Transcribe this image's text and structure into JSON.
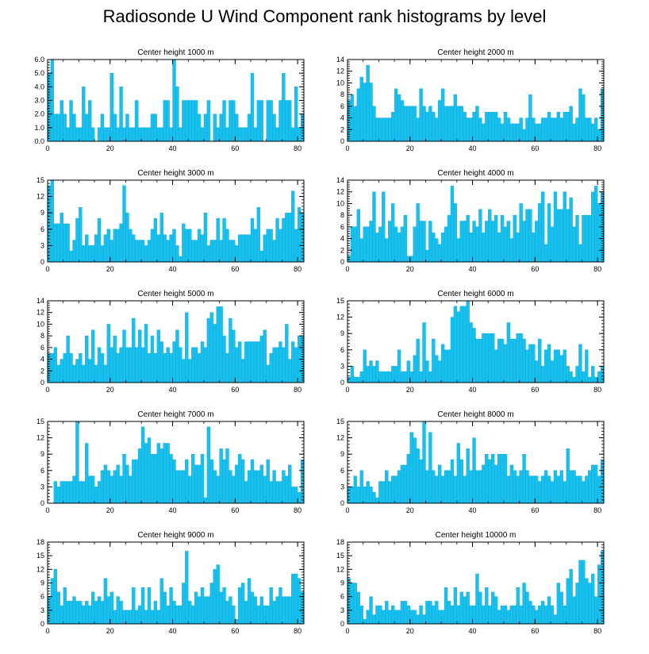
{
  "figure": {
    "title": "Radiosonde U Wind Component rank histograms by level"
  },
  "colors": {
    "bar": "#18c0ee",
    "bar_edge": "#0aa6d8",
    "axis": "#000000",
    "background": "#ffffff"
  },
  "chart_data": [
    {
      "type": "bar",
      "title": "Center height 1000 m",
      "xlim": [
        0,
        82
      ],
      "ylim": [
        0,
        6
      ],
      "xticks": [
        0,
        20,
        40,
        60,
        80
      ],
      "yticks": [
        0.0,
        1.0,
        2.0,
        3.0,
        4.0,
        5.0,
        6.0
      ],
      "ytick_labels": [
        "0.0",
        "1.0",
        "2.0",
        "3.0",
        "4.0",
        "5.0",
        "6.0"
      ],
      "values": [
        5,
        6,
        2,
        2,
        3,
        2,
        1,
        3,
        2,
        1,
        1,
        4,
        2,
        3,
        1,
        0,
        1,
        2,
        1,
        1,
        5,
        2,
        1,
        4,
        1,
        2,
        1,
        1,
        3,
        1,
        1,
        1,
        1,
        2,
        2,
        1,
        1,
        3,
        3,
        1,
        6,
        4,
        1,
        3,
        3,
        3,
        3,
        3,
        2,
        1,
        2,
        3,
        0,
        2,
        1,
        2,
        3,
        1,
        3,
        3,
        2,
        1,
        1,
        1,
        2,
        5,
        1,
        3,
        3,
        0,
        3,
        3,
        2,
        1,
        3,
        5,
        3,
        3,
        1,
        4,
        1,
        2
      ]
    },
    {
      "type": "bar",
      "title": "Center height 2000 m",
      "xlim": [
        0,
        82
      ],
      "ylim": [
        0,
        14
      ],
      "xticks": [
        0,
        20,
        40,
        60,
        80
      ],
      "yticks": [
        0,
        2,
        4,
        6,
        8,
        10,
        12,
        14
      ],
      "ytick_labels": [
        "0",
        "2",
        "4",
        "6",
        "8",
        "10",
        "12",
        "14"
      ],
      "values": [
        7,
        8,
        6,
        9,
        11,
        10,
        13,
        10,
        6,
        4,
        4,
        4,
        4,
        4,
        5,
        9,
        8,
        7,
        6,
        6,
        6,
        6,
        4,
        9,
        6,
        5,
        6,
        5,
        4,
        7,
        9,
        6,
        6,
        6,
        8,
        6,
        6,
        5,
        4,
        4,
        5,
        6,
        4,
        3,
        5,
        5,
        5,
        5,
        4,
        3,
        5,
        4,
        3,
        3,
        3,
        4,
        2,
        4,
        8,
        4,
        3,
        3,
        4,
        4,
        5,
        4,
        4,
        5,
        4,
        5,
        5,
        6,
        3,
        4,
        9,
        8,
        4,
        4,
        3,
        4,
        2,
        9
      ]
    },
    {
      "type": "bar",
      "title": "Center height 3000 m",
      "xlim": [
        0,
        82
      ],
      "ylim": [
        0,
        15
      ],
      "xticks": [
        0,
        20,
        40,
        60,
        80
      ],
      "yticks": [
        0,
        3,
        6,
        9,
        12,
        15
      ],
      "ytick_labels": [
        "0",
        "3",
        "6",
        "9",
        "12",
        "15"
      ],
      "values": [
        14,
        15,
        7,
        7,
        9,
        7,
        7,
        2,
        4,
        8,
        10,
        3,
        5,
        3,
        3,
        5,
        8,
        3,
        5,
        6,
        4,
        6,
        6,
        7,
        14,
        9,
        6,
        5,
        4,
        4,
        4,
        3,
        4,
        6,
        8,
        5,
        9,
        5,
        4,
        5,
        6,
        3,
        1,
        7,
        6,
        6,
        4,
        4,
        6,
        5,
        9,
        3,
        4,
        4,
        8,
        4,
        8,
        6,
        4,
        4,
        3,
        5,
        5,
        5,
        5,
        8,
        6,
        10,
        2,
        5,
        6,
        6,
        4,
        8,
        6,
        8,
        9,
        9,
        13,
        6,
        10,
        9
      ]
    },
    {
      "type": "bar",
      "title": "Center height 4000 m",
      "xlim": [
        0,
        82
      ],
      "ylim": [
        0,
        14
      ],
      "xticks": [
        0,
        20,
        40,
        60,
        80
      ],
      "yticks": [
        0,
        2,
        4,
        6,
        8,
        10,
        12,
        14
      ],
      "ytick_labels": [
        "0",
        "2",
        "4",
        "6",
        "8",
        "10",
        "12",
        "14"
      ],
      "values": [
        1,
        6,
        6,
        9,
        4,
        6,
        6,
        7,
        12,
        5,
        6,
        12,
        4,
        7,
        10,
        6,
        5,
        6,
        8,
        1,
        1,
        6,
        10,
        7,
        7,
        2,
        7,
        5,
        4,
        3,
        5,
        6,
        8,
        13,
        10,
        4,
        7,
        7,
        8,
        5,
        7,
        6,
        9,
        5,
        7,
        9,
        7,
        8,
        5,
        8,
        6,
        7,
        4,
        8,
        5,
        10,
        7,
        9,
        9,
        5,
        7,
        10,
        12,
        3,
        10,
        6,
        12,
        9,
        9,
        12,
        9,
        11,
        6,
        8,
        3,
        8,
        8,
        8,
        12,
        13,
        10,
        12
      ]
    },
    {
      "type": "bar",
      "title": "Center height 5000 m",
      "xlim": [
        0,
        82
      ],
      "ylim": [
        0,
        14
      ],
      "xticks": [
        0,
        20,
        40,
        60,
        80
      ],
      "yticks": [
        0,
        2,
        4,
        6,
        8,
        10,
        12,
        14
      ],
      "ytick_labels": [
        "0",
        "2",
        "4",
        "6",
        "8",
        "10",
        "12",
        "14"
      ],
      "values": [
        5,
        5,
        6,
        3,
        4,
        5,
        8,
        5,
        3,
        4,
        5,
        3,
        8,
        4,
        9,
        3,
        6,
        5,
        3,
        10,
        6,
        8,
        5,
        6,
        9,
        6,
        6,
        11,
        6,
        9,
        6,
        10,
        5,
        8,
        5,
        9,
        7,
        5,
        6,
        5,
        7,
        9,
        6,
        4,
        12,
        4,
        6,
        6,
        5,
        7,
        6,
        11,
        12,
        10,
        13,
        13,
        8,
        5,
        11,
        9,
        6,
        7,
        4,
        7,
        7,
        7,
        7,
        7,
        8,
        9,
        3,
        5,
        6,
        6,
        7,
        6,
        10,
        4,
        7,
        6,
        8,
        8
      ]
    },
    {
      "type": "bar",
      "title": "Center height 6000 m",
      "xlim": [
        0,
        82
      ],
      "ylim": [
        0,
        15
      ],
      "xticks": [
        0,
        20,
        40,
        60,
        80
      ],
      "yticks": [
        0,
        3,
        6,
        9,
        12,
        15
      ],
      "ytick_labels": [
        "0",
        "3",
        "6",
        "9",
        "12",
        "15"
      ],
      "values": [
        1,
        3,
        1,
        1,
        2,
        6,
        3,
        4,
        3,
        4,
        2,
        2,
        2,
        2,
        3,
        3,
        6,
        2,
        2,
        4,
        2,
        5,
        8,
        2,
        11,
        4,
        2,
        8,
        5,
        4,
        7,
        6,
        6,
        12,
        14,
        13,
        14,
        14,
        15,
        11,
        10,
        8,
        8,
        9,
        9,
        9,
        9,
        6,
        8,
        8,
        7,
        11,
        8,
        8,
        9,
        9,
        8,
        6,
        7,
        7,
        4,
        8,
        3,
        6,
        7,
        4,
        6,
        6,
        5,
        6,
        3,
        2,
        1,
        3,
        7,
        2,
        6,
        1,
        3,
        1,
        2,
        3
      ]
    },
    {
      "type": "bar",
      "title": "Center height 7000 m",
      "xlim": [
        0,
        82
      ],
      "ylim": [
        0,
        15
      ],
      "xticks": [
        0,
        20,
        40,
        60,
        80
      ],
      "yticks": [
        0,
        3,
        6,
        9,
        12,
        15
      ],
      "ytick_labels": [
        "0",
        "3",
        "6",
        "9",
        "12",
        "15"
      ],
      "values": [
        0,
        0,
        4,
        3,
        4,
        4,
        4,
        4,
        5,
        15,
        4,
        4,
        11,
        5,
        5,
        3,
        4,
        6,
        7,
        6,
        5,
        6,
        7,
        5,
        9,
        7,
        5,
        8,
        8,
        10,
        14,
        11,
        12,
        9,
        9,
        11,
        10,
        11,
        11,
        9,
        8,
        6,
        6,
        6,
        8,
        5,
        9,
        7,
        7,
        9,
        1,
        14,
        8,
        6,
        5,
        10,
        8,
        10,
        6,
        5,
        7,
        9,
        8,
        4,
        6,
        8,
        6,
        6,
        7,
        5,
        8,
        4,
        6,
        4,
        4,
        6,
        5,
        7,
        3,
        3,
        2,
        8
      ]
    },
    {
      "type": "bar",
      "title": "Center height 8000 m",
      "xlim": [
        0,
        82
      ],
      "ylim": [
        0,
        15
      ],
      "xticks": [
        0,
        20,
        40,
        60,
        80
      ],
      "yticks": [
        0,
        3,
        6,
        9,
        12,
        15
      ],
      "ytick_labels": [
        "0",
        "3",
        "6",
        "9",
        "12",
        "15"
      ],
      "values": [
        3,
        3,
        5,
        3,
        6,
        3,
        4,
        3,
        2,
        1,
        4,
        4,
        6,
        4,
        5,
        5,
        6,
        7,
        7,
        9,
        13,
        12,
        10,
        8,
        15,
        6,
        13,
        6,
        5,
        7,
        5,
        6,
        6,
        8,
        5,
        11,
        8,
        5,
        10,
        6,
        12,
        6,
        6,
        7,
        9,
        8,
        9,
        7,
        9,
        9,
        9,
        5,
        7,
        6,
        5,
        6,
        9,
        6,
        5,
        5,
        5,
        4,
        5,
        6,
        5,
        4,
        6,
        5,
        6,
        4,
        10,
        6,
        6,
        5,
        5,
        4,
        5,
        6,
        7,
        7,
        5,
        8
      ]
    },
    {
      "type": "bar",
      "title": "Center height 9000 m",
      "xlim": [
        0,
        82
      ],
      "ylim": [
        0,
        18
      ],
      "xticks": [
        0,
        20,
        40,
        60,
        80
      ],
      "yticks": [
        0,
        3,
        6,
        9,
        12,
        15,
        18
      ],
      "ytick_labels": [
        "0",
        "3",
        "6",
        "9",
        "12",
        "15",
        "18"
      ],
      "values": [
        6,
        10,
        12,
        7,
        4,
        8,
        5,
        5,
        6,
        5,
        5,
        4,
        5,
        4,
        7,
        5,
        6,
        5,
        10,
        6,
        7,
        3,
        6,
        5,
        3,
        3,
        3,
        8,
        3,
        4,
        8,
        3,
        8,
        3,
        5,
        3,
        10,
        7,
        4,
        8,
        5,
        4,
        4,
        9,
        16,
        5,
        4,
        7,
        6,
        8,
        6,
        6,
        9,
        12,
        13,
        7,
        8,
        5,
        6,
        4,
        1,
        8,
        9,
        5,
        10,
        7,
        6,
        4,
        6,
        4,
        4,
        8,
        5,
        6,
        8,
        6,
        6,
        6,
        11,
        11,
        10,
        7
      ]
    },
    {
      "type": "bar",
      "title": "Center height 10000 m",
      "xlim": [
        0,
        82
      ],
      "ylim": [
        0,
        18
      ],
      "xticks": [
        0,
        20,
        40,
        60,
        80
      ],
      "yticks": [
        0,
        3,
        6,
        9,
        12,
        15,
        18
      ],
      "ytick_labels": [
        "0",
        "3",
        "6",
        "9",
        "12",
        "15",
        "18"
      ],
      "values": [
        10,
        9,
        9,
        7,
        4,
        1,
        3,
        6,
        2,
        4,
        4,
        3,
        5,
        3,
        4,
        3,
        3,
        5,
        5,
        4,
        3,
        3,
        2,
        4,
        2,
        5,
        5,
        4,
        5,
        3,
        3,
        8,
        5,
        4,
        8,
        4,
        7,
        6,
        7,
        4,
        4,
        11,
        7,
        4,
        8,
        4,
        7,
        6,
        3,
        4,
        4,
        3,
        4,
        4,
        8,
        4,
        9,
        7,
        5,
        4,
        3,
        4,
        5,
        4,
        6,
        4,
        2,
        9,
        7,
        4,
        10,
        12,
        6,
        9,
        14,
        14,
        10,
        9,
        11,
        6,
        13,
        16
      ]
    }
  ]
}
